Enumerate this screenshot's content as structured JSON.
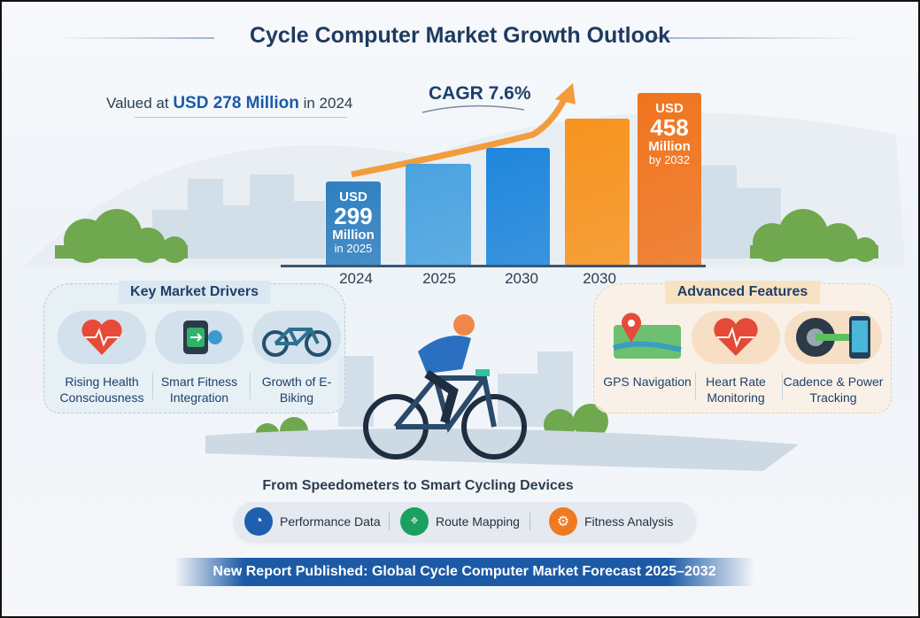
{
  "title": "Cycle Computer Market Growth Outlook",
  "valued": {
    "prefix": "Valued at",
    "amount": "USD 278 Million",
    "suffix": "in 2024"
  },
  "cagr": "CAGR 7.6%",
  "bars": [
    {
      "year": "2024",
      "label_lines": [
        "USD",
        "299",
        "Million",
        "in 2025"
      ],
      "color": "#2f7fc0"
    },
    {
      "year": "2025",
      "label_lines": [],
      "color": "#4aa3e0"
    },
    {
      "year": "2030",
      "label_lines": [],
      "color": "#1f86dc"
    },
    {
      "year": "2030",
      "label_lines": [],
      "color": "#f7931e"
    },
    {
      "year": "",
      "label_lines": [
        "USD",
        "458",
        "Million",
        "by 2032"
      ],
      "color": "#f0741e"
    }
  ],
  "drivers": {
    "title": "Key Market Drivers",
    "items": [
      {
        "label": "Rising Health Consciousness",
        "icon": "heart-pulse-icon"
      },
      {
        "label": "Smart Fitness Integration",
        "icon": "smartwatch-icon"
      },
      {
        "label": "Growth of E-Biking",
        "icon": "bicycle-icon"
      }
    ]
  },
  "features": {
    "title": "Advanced Features",
    "items": [
      {
        "label": "GPS Navigation",
        "icon": "map-pin-icon"
      },
      {
        "label": "Heart Rate Monitoring",
        "icon": "heart-pulse-icon"
      },
      {
        "label": "Cadence & Power Tracking",
        "icon": "crank-phone-icon"
      }
    ]
  },
  "subtitle": "From Speedometers to Smart Cycling Devices",
  "capabilities": [
    {
      "label": "Performance Data",
      "icon": "speedometer-icon",
      "color": "#1f5fae"
    },
    {
      "label": "Route Mapping",
      "icon": "route-pin-icon",
      "color": "#1aa060"
    },
    {
      "label": "Fitness Analysis",
      "icon": "gear-icon",
      "color": "#f07a1e"
    }
  ],
  "banner": "New Report Published: Global Cycle Computer Market Forecast 2025–2032"
}
